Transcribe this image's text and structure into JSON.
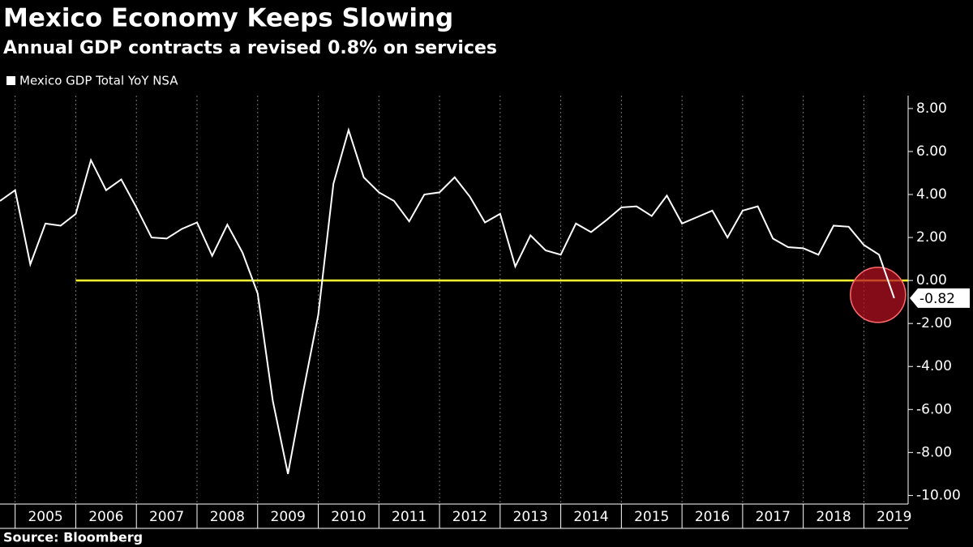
{
  "chart_data": {
    "type": "line",
    "title": "Mexico Economy Keeps Slowing",
    "subtitle": "Annual GDP contracts a revised 0.8% on services",
    "source": "Source: Bloomberg",
    "x": [
      2004.75,
      2005.0,
      2005.25,
      2005.5,
      2005.75,
      2006.0,
      2006.25,
      2006.5,
      2006.75,
      2007.0,
      2007.25,
      2007.5,
      2007.75,
      2008.0,
      2008.25,
      2008.5,
      2008.75,
      2009.0,
      2009.25,
      2009.5,
      2009.75,
      2010.0,
      2010.25,
      2010.5,
      2010.75,
      2011.0,
      2011.25,
      2011.5,
      2011.75,
      2012.0,
      2012.25,
      2012.5,
      2012.75,
      2013.0,
      2013.25,
      2013.5,
      2013.75,
      2014.0,
      2014.25,
      2014.5,
      2014.75,
      2015.0,
      2015.25,
      2015.5,
      2015.75,
      2016.0,
      2016.25,
      2016.5,
      2016.75,
      2017.0,
      2017.25,
      2017.5,
      2017.75,
      2018.0,
      2018.25,
      2018.5,
      2018.75,
      2019.0,
      2019.25,
      2019.5
    ],
    "series": [
      {
        "name": "Mexico GDP Total YoY NSA",
        "color": "#ffffff",
        "values": [
          3.7,
          4.2,
          0.75,
          2.65,
          2.55,
          3.1,
          5.6,
          4.2,
          4.7,
          3.4,
          2.0,
          1.95,
          2.4,
          2.7,
          1.15,
          2.6,
          1.3,
          -0.6,
          -5.6,
          -9.0,
          -5.2,
          -1.6,
          4.5,
          7.0,
          4.8,
          4.1,
          3.7,
          2.75,
          4.0,
          4.1,
          4.8,
          3.9,
          2.7,
          3.1,
          0.65,
          2.1,
          1.4,
          1.2,
          2.65,
          2.25,
          2.8,
          3.4,
          3.45,
          3.0,
          3.95,
          2.65,
          2.95,
          3.25,
          2.0,
          3.25,
          3.45,
          1.95,
          1.55,
          1.5,
          1.2,
          2.55,
          2.5,
          1.65,
          1.2,
          -0.82
        ],
        "last_label": "-0.82"
      }
    ],
    "reference_line": {
      "value": 0,
      "start": 2006,
      "color": "#ffff33"
    },
    "highlight_color": "#b01020",
    "xlim": [
      2004.75,
      2019.73
    ],
    "xticks": [
      {
        "value": 2005.5,
        "label": "2005"
      },
      {
        "value": 2006.5,
        "label": "2006"
      },
      {
        "value": 2007.5,
        "label": "2007"
      },
      {
        "value": 2008.5,
        "label": "2008"
      },
      {
        "value": 2009.5,
        "label": "2009"
      },
      {
        "value": 2010.5,
        "label": "2010"
      },
      {
        "value": 2011.5,
        "label": "2011"
      },
      {
        "value": 2012.5,
        "label": "2012"
      },
      {
        "value": 2013.5,
        "label": "2013"
      },
      {
        "value": 2014.5,
        "label": "2014"
      },
      {
        "value": 2015.5,
        "label": "2015"
      },
      {
        "value": 2016.5,
        "label": "2016"
      },
      {
        "value": 2017.5,
        "label": "2017"
      },
      {
        "value": 2018.5,
        "label": "2018"
      },
      {
        "value": 2019.5,
        "label": "2019"
      }
    ],
    "ylim": [
      -10.4,
      8.6
    ],
    "yticks": [
      {
        "value": 8,
        "label": "8.00"
      },
      {
        "value": 6,
        "label": "6.00"
      },
      {
        "value": 4,
        "label": "4.00"
      },
      {
        "value": 2,
        "label": "2.00"
      },
      {
        "value": 0,
        "label": "0.00"
      },
      {
        "value": -2,
        "label": "-2.00"
      },
      {
        "value": -4,
        "label": "-4.00"
      },
      {
        "value": -6,
        "label": "-6.00"
      },
      {
        "value": -8,
        "label": "-8.00"
      },
      {
        "value": -10,
        "label": "-10.00"
      }
    ],
    "grid": true
  }
}
